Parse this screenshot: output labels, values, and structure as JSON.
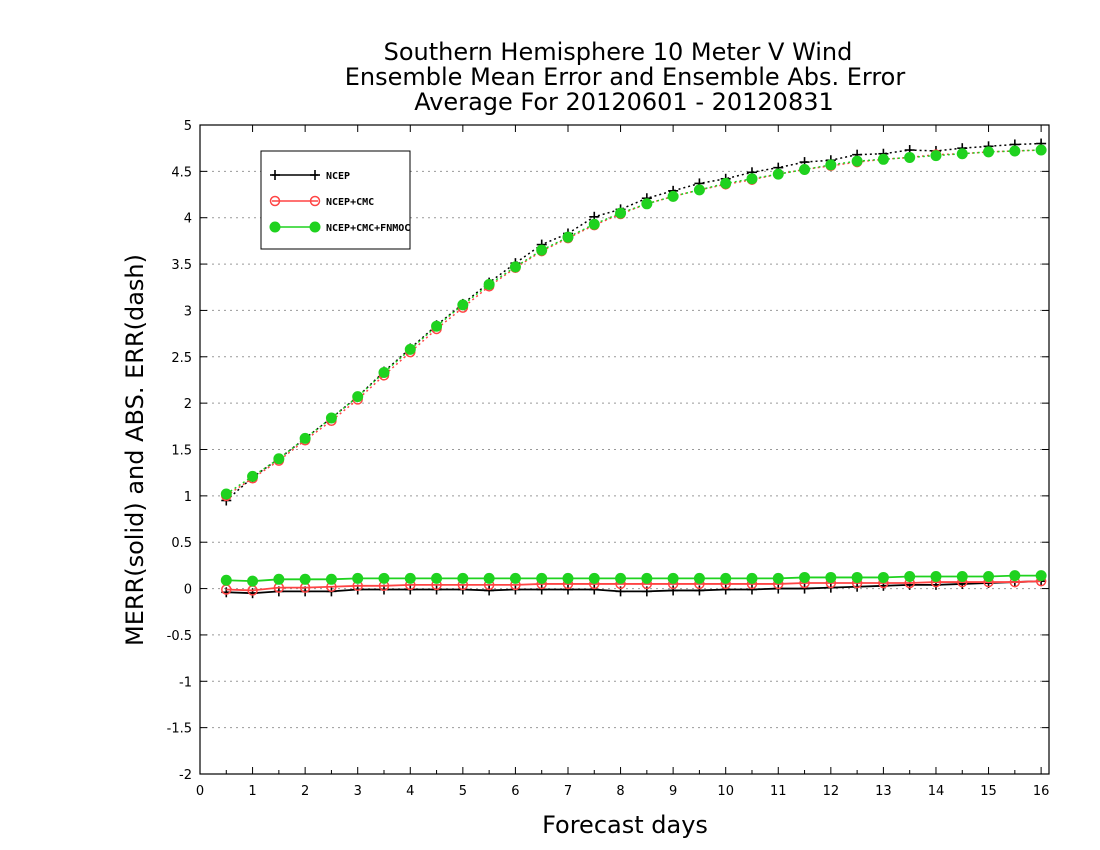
{
  "chart_data": {
    "type": "line",
    "title": [
      "Southern Hemisphere 10 Meter V Wind",
      "Ensemble Mean Error and Ensemble Abs. Error",
      "Average For 20120601 - 20120831"
    ],
    "xlabel": "Forecast days",
    "ylabel": "MERR(solid) and ABS. ERR(dash)",
    "xlim": [
      0,
      16.15
    ],
    "ylim": [
      -2,
      5
    ],
    "xticks": [
      "0",
      "1",
      "2",
      "3",
      "4",
      "5",
      "6",
      "7",
      "8",
      "9",
      "10",
      "11",
      "12",
      "13",
      "14",
      "15",
      "16"
    ],
    "yticks": [
      "5",
      "4.5",
      "4",
      "3.5",
      "3",
      "2.5",
      "2",
      "1.5",
      "1",
      "0.5",
      "0",
      "-0.5",
      "-1",
      "-1.5",
      "-2"
    ],
    "grid": true,
    "legend_position": "top-left",
    "x": [
      0.5,
      1,
      1.5,
      2,
      2.5,
      3,
      3.5,
      4,
      4.5,
      5,
      5.5,
      6,
      6.5,
      7,
      7.5,
      8,
      8.5,
      9,
      9.5,
      10,
      10.5,
      11,
      11.5,
      12,
      12.5,
      13,
      13.5,
      14,
      14.5,
      15,
      15.5,
      16
    ],
    "series": [
      {
        "name": "NCEP",
        "color": "#000000",
        "marker": "plus",
        "mean_error": [
          -0.04,
          -0.05,
          -0.03,
          -0.03,
          -0.03,
          -0.01,
          -0.01,
          -0.01,
          -0.01,
          -0.01,
          -0.02,
          -0.01,
          -0.01,
          -0.01,
          -0.01,
          -0.03,
          -0.03,
          -0.02,
          -0.02,
          -0.01,
          -0.01,
          0.0,
          0.0,
          0.01,
          0.02,
          0.03,
          0.04,
          0.04,
          0.05,
          0.06,
          0.07,
          0.08
        ],
        "abs_error": [
          0.95,
          1.2,
          1.4,
          1.62,
          1.84,
          2.07,
          2.34,
          2.59,
          2.84,
          3.07,
          3.3,
          3.51,
          3.71,
          3.83,
          4.01,
          4.09,
          4.21,
          4.29,
          4.37,
          4.42,
          4.49,
          4.54,
          4.6,
          4.62,
          4.68,
          4.69,
          4.73,
          4.72,
          4.75,
          4.77,
          4.79,
          4.8
        ]
      },
      {
        "name": "NCEP+CMC",
        "color": "#ff4444",
        "marker": "open-circle",
        "mean_error": [
          -0.01,
          -0.02,
          0.01,
          0.01,
          0.02,
          0.03,
          0.03,
          0.04,
          0.04,
          0.04,
          0.04,
          0.04,
          0.05,
          0.05,
          0.05,
          0.05,
          0.05,
          0.05,
          0.05,
          0.05,
          0.05,
          0.05,
          0.06,
          0.06,
          0.06,
          0.06,
          0.06,
          0.07,
          0.07,
          0.07,
          0.07,
          0.08
        ],
        "abs_error": [
          1.0,
          1.19,
          1.38,
          1.6,
          1.81,
          2.04,
          2.3,
          2.55,
          2.8,
          3.03,
          3.26,
          3.46,
          3.64,
          3.78,
          3.92,
          4.04,
          4.15,
          4.23,
          4.3,
          4.36,
          4.41,
          4.47,
          4.52,
          4.56,
          4.6,
          4.63,
          4.65,
          4.68,
          4.69,
          4.71,
          4.72,
          4.73
        ]
      },
      {
        "name": "NCEP+CMC+FNMOC",
        "color": "#1fd21f",
        "marker": "filled-circle",
        "mean_error": [
          0.09,
          0.08,
          0.1,
          0.1,
          0.1,
          0.11,
          0.11,
          0.11,
          0.11,
          0.11,
          0.11,
          0.11,
          0.11,
          0.11,
          0.11,
          0.11,
          0.11,
          0.11,
          0.11,
          0.11,
          0.11,
          0.11,
          0.12,
          0.12,
          0.12,
          0.12,
          0.13,
          0.13,
          0.13,
          0.13,
          0.14,
          0.14
        ],
        "abs_error": [
          1.02,
          1.21,
          1.4,
          1.62,
          1.84,
          2.07,
          2.33,
          2.58,
          2.83,
          3.06,
          3.28,
          3.47,
          3.65,
          3.79,
          3.93,
          4.05,
          4.15,
          4.23,
          4.3,
          4.37,
          4.42,
          4.47,
          4.52,
          4.57,
          4.61,
          4.63,
          4.65,
          4.67,
          4.69,
          4.71,
          4.72,
          4.73
        ]
      }
    ]
  }
}
